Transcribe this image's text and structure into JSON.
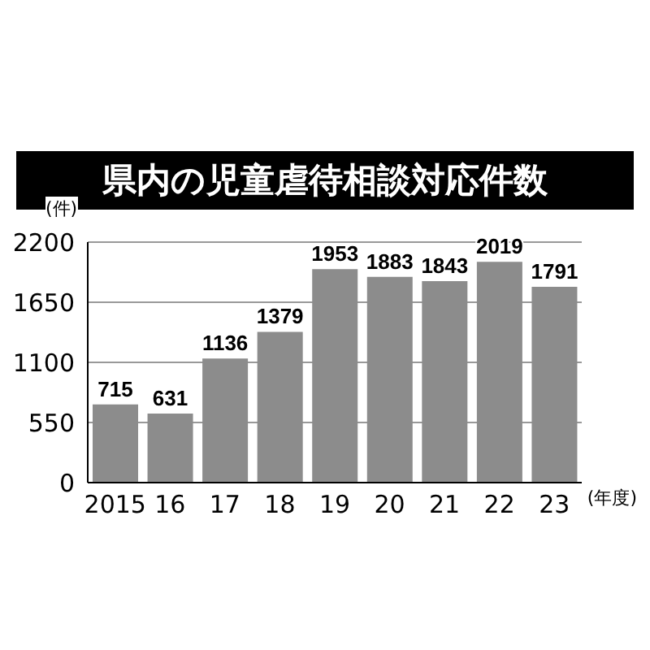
{
  "chart_data": {
    "type": "bar",
    "title": "県内の児童虐待相談対応件数",
    "ylabel": "(件)",
    "xlabel": "(年度)",
    "categories": [
      "2015",
      "16",
      "17",
      "18",
      "19",
      "20",
      "21",
      "22",
      "23"
    ],
    "values": [
      715,
      631,
      1136,
      1379,
      1953,
      1883,
      1843,
      2019,
      1791
    ],
    "color": "#8c8c8c",
    "ylim": [
      0,
      2200
    ],
    "yticks": [
      0,
      550,
      1100,
      1650,
      2200
    ],
    "grid": "y",
    "data_labels": true
  }
}
